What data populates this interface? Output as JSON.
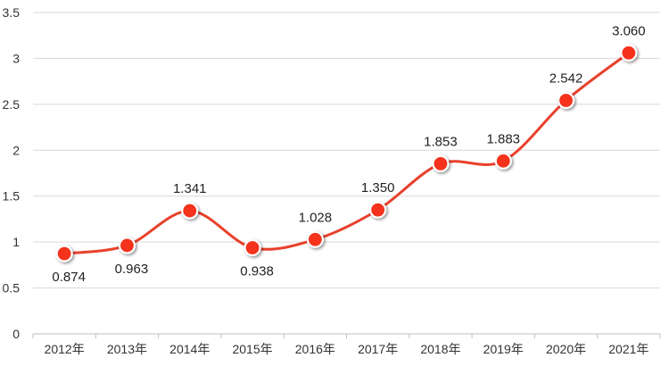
{
  "chart_data": {
    "type": "line",
    "title": "",
    "xlabel": "",
    "ylabel": "",
    "categories": [
      "2012年",
      "2013年",
      "2014年",
      "2015年",
      "2016年",
      "2017年",
      "2018年",
      "2019年",
      "2020年",
      "2021年"
    ],
    "series": [
      {
        "values": [
          0.874,
          0.963,
          1.341,
          0.938,
          1.028,
          1.35,
          1.853,
          1.883,
          2.542,
          3.06
        ],
        "labels": [
          "0.874",
          "0.963",
          "1.341",
          "0.938",
          "1.028",
          "1.350",
          "1.853",
          "1.883",
          "2.542",
          "3.060"
        ],
        "label_position": [
          "below",
          "below",
          "above",
          "below",
          "above",
          "above",
          "above",
          "above",
          "above",
          "above"
        ],
        "line_color": "#e8412c",
        "marker_color": "#f5311f",
        "smooth": true
      }
    ],
    "ylim": [
      0,
      3.5
    ],
    "yticks": [
      "0",
      "0.5",
      "1",
      "1.5",
      "2",
      "2.5",
      "3",
      "3.5"
    ],
    "yticks_values": [
      0,
      0.5,
      1,
      1.5,
      2,
      2.5,
      3,
      3.5
    ],
    "grid": true,
    "legend": "none"
  }
}
